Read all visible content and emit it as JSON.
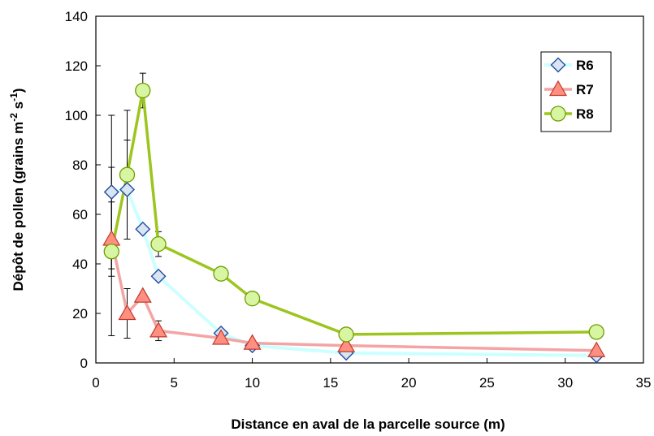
{
  "chart_data": {
    "type": "line",
    "xlabel": "Distance en aval de la parcelle source (m)",
    "ylabel_main": "Dépôt de pollen (grains m",
    "ylabel_sup1": "-2",
    "ylabel_mid": " s",
    "ylabel_sup2": "-1",
    "ylabel_end": ")",
    "xlim": [
      0,
      35
    ],
    "ylim": [
      0,
      140
    ],
    "xticks": [
      0,
      5,
      10,
      15,
      20,
      25,
      30,
      35
    ],
    "yticks": [
      0,
      20,
      40,
      60,
      80,
      100,
      120,
      140
    ],
    "legend_position": "top-right",
    "grid": false,
    "series": [
      {
        "name": "R6",
        "marker": "diamond",
        "line_color": "#ccffff",
        "marker_fill": "#dbe5f1",
        "marker_stroke": "#1f4ea3",
        "x": [
          1,
          2,
          3,
          4,
          8,
          10,
          16,
          32
        ],
        "y": [
          69,
          70,
          54,
          35,
          12,
          7,
          4,
          3
        ],
        "error": [
          31,
          20,
          0,
          0,
          0,
          0,
          0,
          0
        ]
      },
      {
        "name": "R7",
        "marker": "triangle",
        "line_color": "#f4a4a4",
        "marker_fill": "#ff8f80",
        "marker_stroke": "#c0392b",
        "x": [
          1,
          2,
          3,
          4,
          8,
          10,
          16,
          32
        ],
        "y": [
          50,
          20,
          27,
          13,
          10,
          8,
          7,
          5
        ],
        "error": [
          15,
          10,
          0,
          4,
          0,
          0,
          0,
          0
        ]
      },
      {
        "name": "R8",
        "marker": "circle",
        "line_color": "#9cc51e",
        "marker_fill": "#d8f5a2",
        "marker_stroke": "#6e9e00",
        "x": [
          1,
          2,
          3,
          4,
          8,
          10,
          16,
          32
        ],
        "y": [
          45,
          76,
          110,
          48,
          36,
          26,
          11.5,
          12.5
        ],
        "error": [
          34,
          26,
          7,
          5,
          0,
          0,
          0,
          0
        ]
      }
    ]
  }
}
